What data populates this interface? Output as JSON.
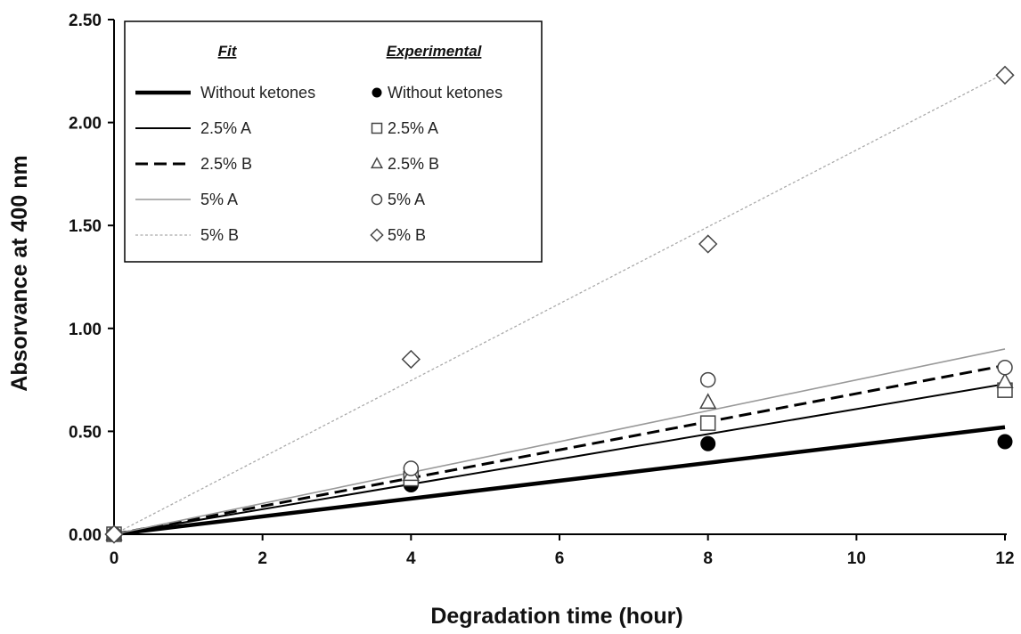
{
  "chart_data": {
    "type": "line",
    "title": "",
    "xlabel": "Degradation time (hour)",
    "ylabel": "Absorvance at 400 nm",
    "xlim": [
      0,
      12
    ],
    "ylim": [
      0,
      2.5
    ],
    "x_ticks": [
      "0",
      "2",
      "4",
      "6",
      "8",
      "10",
      "12"
    ],
    "y_ticks": [
      "0.00",
      "0.50",
      "1.00",
      "1.50",
      "2.00",
      "2.50"
    ],
    "grid": false,
    "legend": {
      "placement": "top-left",
      "fit_header": "Fit",
      "experimental_header": "Experimental"
    },
    "fit_series": [
      {
        "name": "Without ketones",
        "x": [
          0,
          12
        ],
        "y": [
          0,
          0.52
        ],
        "style": "thick-solid",
        "color": "#000000"
      },
      {
        "name": "2.5% A",
        "x": [
          0,
          12
        ],
        "y": [
          0,
          0.73
        ],
        "style": "solid",
        "color": "#000000"
      },
      {
        "name": "2.5% B",
        "x": [
          0,
          12
        ],
        "y": [
          0,
          0.82
        ],
        "style": "dashed",
        "color": "#000000"
      },
      {
        "name": "5% A",
        "x": [
          0,
          12
        ],
        "y": [
          0,
          0.9
        ],
        "style": "solid-gray",
        "color": "#999999"
      },
      {
        "name": "5% B",
        "x": [
          0,
          12
        ],
        "y": [
          0,
          2.24
        ],
        "style": "dotted",
        "color": "#aaaaaa"
      }
    ],
    "experimental_series": [
      {
        "name": "Without ketones",
        "marker": "filled-circle",
        "x": [
          0,
          4,
          8,
          12
        ],
        "y": [
          0,
          0.24,
          0.44,
          0.45
        ]
      },
      {
        "name": "2.5% A",
        "marker": "square",
        "x": [
          0,
          4,
          8,
          12
        ],
        "y": [
          0,
          0.27,
          0.54,
          0.7
        ]
      },
      {
        "name": "2.5% B",
        "marker": "triangle",
        "x": [
          0,
          4,
          8,
          12
        ],
        "y": [
          0,
          0.29,
          0.64,
          0.74
        ]
      },
      {
        "name": "5% A",
        "marker": "circle",
        "x": [
          0,
          4,
          8,
          12
        ],
        "y": [
          0,
          0.32,
          0.75,
          0.81
        ]
      },
      {
        "name": "5% B",
        "marker": "diamond",
        "x": [
          0,
          4,
          8,
          12
        ],
        "y": [
          0,
          0.85,
          1.41,
          2.23
        ]
      }
    ]
  }
}
